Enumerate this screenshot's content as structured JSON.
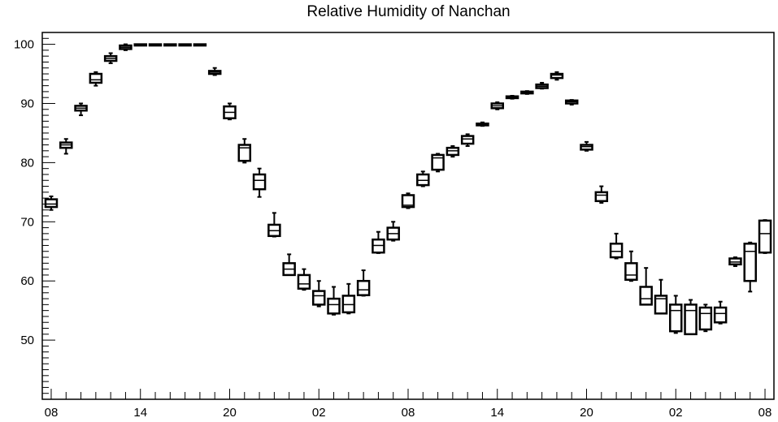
{
  "chart_data": {
    "type": "boxplot",
    "title": "Relative Humidity of Nanchan",
    "xlabel": "",
    "ylabel": "",
    "ylim": [
      40,
      102
    ],
    "x_hour_range": [
      -0.6,
      48.6
    ],
    "y_ticks": [
      50,
      60,
      70,
      80,
      90,
      100
    ],
    "x_ticks": [
      {
        "hour": 0,
        "label": "08"
      },
      {
        "hour": 6,
        "label": "14"
      },
      {
        "hour": 12,
        "label": "20"
      },
      {
        "hour": 18,
        "label": "02"
      },
      {
        "hour": 24,
        "label": "08"
      },
      {
        "hour": 30,
        "label": "14"
      },
      {
        "hour": 36,
        "label": "20"
      },
      {
        "hour": 42,
        "label": "02"
      },
      {
        "hour": 48,
        "label": "08"
      }
    ],
    "grid": false,
    "legend": "none",
    "boxes": [
      {
        "hour": 0,
        "min": 72.0,
        "q1": 72.5,
        "median": 73.0,
        "q3": 73.8,
        "max": 74.3
      },
      {
        "hour": 1,
        "min": 81.5,
        "q1": 82.5,
        "median": 83.0,
        "q3": 83.4,
        "max": 84.0
      },
      {
        "hour": 2,
        "min": 88.0,
        "q1": 88.8,
        "median": 89.2,
        "q3": 89.6,
        "max": 90.0
      },
      {
        "hour": 3,
        "min": 93.0,
        "q1": 93.5,
        "median": 94.0,
        "q3": 95.0,
        "max": 95.3
      },
      {
        "hour": 4,
        "min": 96.8,
        "q1": 97.2,
        "median": 97.6,
        "q3": 98.0,
        "max": 98.5
      },
      {
        "hour": 5,
        "min": 99.0,
        "q1": 99.2,
        "median": 99.5,
        "q3": 99.8,
        "max": 100.0
      },
      {
        "hour": 6,
        "min": 100.0,
        "q1": 100.0,
        "median": 100.0,
        "q3": 100.0,
        "max": 100.0
      },
      {
        "hour": 7,
        "min": 100.0,
        "q1": 100.0,
        "median": 100.0,
        "q3": 100.0,
        "max": 100.0
      },
      {
        "hour": 8,
        "min": 100.0,
        "q1": 100.0,
        "median": 100.0,
        "q3": 100.0,
        "max": 100.0
      },
      {
        "hour": 9,
        "min": 100.0,
        "q1": 100.0,
        "median": 100.0,
        "q3": 100.0,
        "max": 100.0
      },
      {
        "hour": 10,
        "min": 100.0,
        "q1": 100.0,
        "median": 100.0,
        "q3": 100.0,
        "max": 100.0
      },
      {
        "hour": 11,
        "min": 94.8,
        "q1": 95.0,
        "median": 95.3,
        "q3": 95.5,
        "max": 96.0
      },
      {
        "hour": 12,
        "min": 87.3,
        "q1": 87.5,
        "median": 88.5,
        "q3": 89.5,
        "max": 90.0
      },
      {
        "hour": 13,
        "min": 80.0,
        "q1": 80.3,
        "median": 82.5,
        "q3": 83.0,
        "max": 84.0
      },
      {
        "hour": 14,
        "min": 74.2,
        "q1": 75.5,
        "median": 77.0,
        "q3": 78.0,
        "max": 79.0
      },
      {
        "hour": 15,
        "min": 67.5,
        "q1": 67.6,
        "median": 68.5,
        "q3": 69.5,
        "max": 71.5
      },
      {
        "hour": 16,
        "min": 61.0,
        "q1": 61.0,
        "median": 62.0,
        "q3": 63.0,
        "max": 64.5
      },
      {
        "hour": 17,
        "min": 58.5,
        "q1": 58.7,
        "median": 59.5,
        "q3": 61.0,
        "max": 62.0
      },
      {
        "hour": 18,
        "min": 55.7,
        "q1": 56.0,
        "median": 57.5,
        "q3": 58.3,
        "max": 60.0
      },
      {
        "hour": 19,
        "min": 54.3,
        "q1": 54.5,
        "median": 56.0,
        "q3": 57.0,
        "max": 59.0
      },
      {
        "hour": 20,
        "min": 54.5,
        "q1": 54.7,
        "median": 56.0,
        "q3": 57.5,
        "max": 59.5
      },
      {
        "hour": 21,
        "min": 57.5,
        "q1": 57.6,
        "median": 58.5,
        "q3": 60.0,
        "max": 61.8
      },
      {
        "hour": 22,
        "min": 64.7,
        "q1": 64.8,
        "median": 66.0,
        "q3": 67.0,
        "max": 68.3
      },
      {
        "hour": 23,
        "min": 66.8,
        "q1": 67.0,
        "median": 68.0,
        "q3": 69.0,
        "max": 70.0
      },
      {
        "hour": 24,
        "min": 72.3,
        "q1": 72.5,
        "median": 72.8,
        "q3": 74.5,
        "max": 74.8
      },
      {
        "hour": 25,
        "min": 76.0,
        "q1": 76.2,
        "median": 77.0,
        "q3": 78.0,
        "max": 78.5
      },
      {
        "hour": 26,
        "min": 78.5,
        "q1": 78.8,
        "median": 80.8,
        "q3": 81.3,
        "max": 81.5
      },
      {
        "hour": 27,
        "min": 81.0,
        "q1": 81.3,
        "median": 82.0,
        "q3": 82.5,
        "max": 82.8
      },
      {
        "hour": 28,
        "min": 82.8,
        "q1": 83.2,
        "median": 84.0,
        "q3": 84.5,
        "max": 84.8
      },
      {
        "hour": 29,
        "min": 86.2,
        "q1": 86.3,
        "median": 86.5,
        "q3": 86.6,
        "max": 86.8
      },
      {
        "hour": 30,
        "min": 89.0,
        "q1": 89.2,
        "median": 89.6,
        "q3": 90.0,
        "max": 90.2
      },
      {
        "hour": 31,
        "min": 90.8,
        "q1": 90.9,
        "median": 91.0,
        "q3": 91.2,
        "max": 91.3
      },
      {
        "hour": 32,
        "min": 91.6,
        "q1": 91.7,
        "median": 91.8,
        "q3": 92.0,
        "max": 92.1
      },
      {
        "hour": 33,
        "min": 92.5,
        "q1": 92.6,
        "median": 92.9,
        "q3": 93.2,
        "max": 93.5
      },
      {
        "hour": 34,
        "min": 94.0,
        "q1": 94.3,
        "median": 94.8,
        "q3": 95.0,
        "max": 95.3
      },
      {
        "hour": 35,
        "min": 89.8,
        "q1": 90.0,
        "median": 90.3,
        "q3": 90.5,
        "max": 90.6
      },
      {
        "hour": 36,
        "min": 82.0,
        "q1": 82.2,
        "median": 82.7,
        "q3": 83.0,
        "max": 83.5
      },
      {
        "hour": 37,
        "min": 73.2,
        "q1": 73.5,
        "median": 74.5,
        "q3": 75.0,
        "max": 76.0
      },
      {
        "hour": 38,
        "min": 63.8,
        "q1": 64.0,
        "median": 65.0,
        "q3": 66.3,
        "max": 68.0
      },
      {
        "hour": 39,
        "min": 60.0,
        "q1": 60.2,
        "median": 61.0,
        "q3": 63.0,
        "max": 65.0
      },
      {
        "hour": 40,
        "min": 56.0,
        "q1": 56.0,
        "median": 57.0,
        "q3": 59.0,
        "max": 62.2
      },
      {
        "hour": 41,
        "min": 54.5,
        "q1": 54.5,
        "median": 57.0,
        "q3": 57.5,
        "max": 60.2
      },
      {
        "hour": 42,
        "min": 51.2,
        "q1": 51.5,
        "median": 55.0,
        "q3": 56.0,
        "max": 57.5
      },
      {
        "hour": 43,
        "min": 51.0,
        "q1": 51.0,
        "median": 55.0,
        "q3": 56.0,
        "max": 56.8
      },
      {
        "hour": 44,
        "min": 51.5,
        "q1": 51.8,
        "median": 54.5,
        "q3": 55.5,
        "max": 56.0
      },
      {
        "hour": 45,
        "min": 52.8,
        "q1": 53.0,
        "median": 54.5,
        "q3": 55.5,
        "max": 56.5
      },
      {
        "hour": 46,
        "min": 62.5,
        "q1": 62.8,
        "median": 63.2,
        "q3": 63.8,
        "max": 64.0
      },
      {
        "hour": 47,
        "min": 58.2,
        "q1": 60.0,
        "median": 65.0,
        "q3": 66.3,
        "max": 66.5
      },
      {
        "hour": 48,
        "min": 64.7,
        "q1": 64.8,
        "median": 68.0,
        "q3": 70.2,
        "max": 70.3
      }
    ]
  }
}
